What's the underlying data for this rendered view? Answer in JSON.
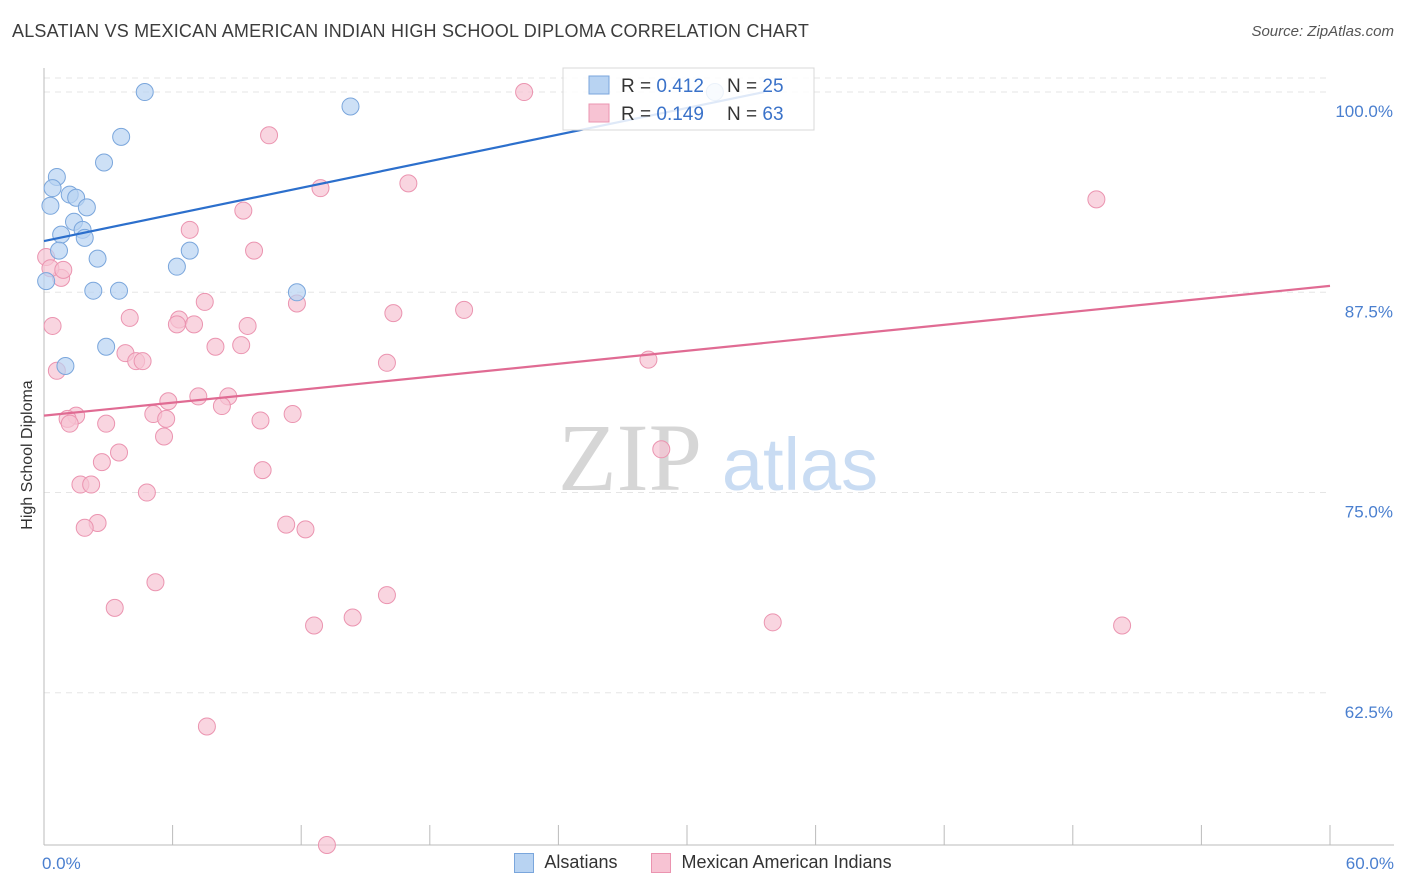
{
  "header": {
    "title": "ALSATIAN VS MEXICAN AMERICAN INDIAN HIGH SCHOOL DIPLOMA CORRELATION CHART",
    "source": "Source: ZipAtlas.com"
  },
  "watermark": {
    "zip": "ZIP",
    "atlas": "atlas"
  },
  "colors": {
    "alsatian_fill": "#b8d3f2",
    "alsatian_stroke": "#7aa6dc",
    "alsatian_line": "#2c6fcc",
    "mexican_fill": "#f7c3d3",
    "mexican_stroke": "#eb94b0",
    "mexican_line": "#e06b93",
    "tick_label": "#4a7fcf",
    "grid": "#e5e5e5"
  },
  "legend_box": [
    {
      "r_label": "R = ",
      "r_value": "0.412",
      "n_label": "N = ",
      "n_value": "25"
    },
    {
      "r_label": "R = ",
      "r_value": "0.149",
      "n_label": "N = ",
      "n_value": "63"
    }
  ],
  "chart_data": {
    "type": "scatter",
    "title": "ALSATIAN VS MEXICAN AMERICAN INDIAN HIGH SCHOOL DIPLOMA CORRELATION CHART",
    "xlabel": "",
    "ylabel": "High School Diploma",
    "x_range": [
      0,
      60
    ],
    "y_range": [
      53,
      102
    ],
    "x_tick_labels": [
      {
        "value": 0,
        "label": "0.0%"
      },
      {
        "value": 60,
        "label": "60.0%"
      }
    ],
    "y_ticks": [
      {
        "value": 100,
        "label": "100.0%"
      },
      {
        "value": 87.5,
        "label": "87.5%"
      },
      {
        "value": 75,
        "label": "75.0%"
      },
      {
        "value": 62.5,
        "label": "62.5%"
      }
    ],
    "grid": true,
    "legend_position": "top-center",
    "series": [
      {
        "name": "Alsatians",
        "trend": {
          "x": [
            0,
            33.6
          ],
          "y": [
            90.7,
            100.0
          ]
        },
        "points": [
          [
            4.7,
            100.0
          ],
          [
            14.3,
            99.1
          ],
          [
            3.6,
            97.2
          ],
          [
            2.8,
            95.6
          ],
          [
            0.6,
            94.7
          ],
          [
            0.4,
            94.0
          ],
          [
            1.2,
            93.6
          ],
          [
            1.5,
            93.4
          ],
          [
            0.3,
            92.9
          ],
          [
            2.0,
            92.8
          ],
          [
            1.4,
            91.9
          ],
          [
            1.8,
            91.4
          ],
          [
            0.8,
            91.1
          ],
          [
            1.9,
            90.9
          ],
          [
            0.7,
            90.1
          ],
          [
            6.8,
            90.1
          ],
          [
            2.5,
            89.6
          ],
          [
            6.2,
            89.1
          ],
          [
            0.1,
            88.2
          ],
          [
            2.3,
            87.6
          ],
          [
            3.5,
            87.6
          ],
          [
            11.8,
            87.5
          ],
          [
            2.9,
            84.1
          ],
          [
            1.0,
            82.9
          ],
          [
            31.3,
            100.0
          ]
        ]
      },
      {
        "name": "Mexican American Indians",
        "trend": {
          "x": [
            0,
            60
          ],
          "y": [
            79.8,
            87.9
          ]
        },
        "points": [
          [
            22.4,
            100.0
          ],
          [
            10.5,
            97.3
          ],
          [
            17.0,
            94.3
          ],
          [
            12.9,
            94.0
          ],
          [
            49.1,
            93.3
          ],
          [
            9.3,
            92.6
          ],
          [
            6.8,
            91.4
          ],
          [
            9.8,
            90.1
          ],
          [
            0.1,
            89.7
          ],
          [
            7.5,
            86.9
          ],
          [
            11.8,
            86.8
          ],
          [
            16.3,
            86.2
          ],
          [
            19.6,
            86.4
          ],
          [
            4.0,
            85.9
          ],
          [
            6.3,
            85.8
          ],
          [
            6.2,
            85.5
          ],
          [
            7.0,
            85.5
          ],
          [
            9.5,
            85.4
          ],
          [
            0.4,
            85.4
          ],
          [
            9.2,
            84.2
          ],
          [
            8.0,
            84.1
          ],
          [
            3.8,
            83.7
          ],
          [
            4.3,
            83.2
          ],
          [
            4.6,
            83.2
          ],
          [
            16.0,
            83.1
          ],
          [
            28.2,
            83.3
          ],
          [
            0.6,
            82.6
          ],
          [
            7.2,
            81.0
          ],
          [
            8.6,
            81.0
          ],
          [
            5.8,
            80.7
          ],
          [
            8.3,
            80.4
          ],
          [
            5.1,
            79.9
          ],
          [
            11.6,
            79.9
          ],
          [
            1.5,
            79.8
          ],
          [
            1.1,
            79.6
          ],
          [
            1.2,
            79.3
          ],
          [
            2.9,
            79.3
          ],
          [
            10.1,
            79.5
          ],
          [
            5.7,
            79.6
          ],
          [
            5.6,
            78.5
          ],
          [
            3.5,
            77.5
          ],
          [
            28.8,
            77.7
          ],
          [
            2.7,
            76.9
          ],
          [
            10.2,
            76.4
          ],
          [
            1.7,
            75.5
          ],
          [
            2.2,
            75.5
          ],
          [
            4.8,
            75.0
          ],
          [
            2.5,
            73.1
          ],
          [
            1.9,
            72.8
          ],
          [
            11.3,
            73.0
          ],
          [
            12.2,
            72.7
          ],
          [
            5.2,
            69.4
          ],
          [
            16.0,
            68.6
          ],
          [
            3.3,
            67.8
          ],
          [
            14.4,
            67.2
          ],
          [
            12.6,
            66.7
          ],
          [
            34.0,
            66.9
          ],
          [
            50.3,
            66.7
          ],
          [
            7.6,
            60.4
          ],
          [
            13.2,
            53.0
          ],
          [
            0.8,
            88.4
          ],
          [
            0.3,
            89.0
          ],
          [
            0.9,
            88.9
          ]
        ]
      }
    ]
  }
}
